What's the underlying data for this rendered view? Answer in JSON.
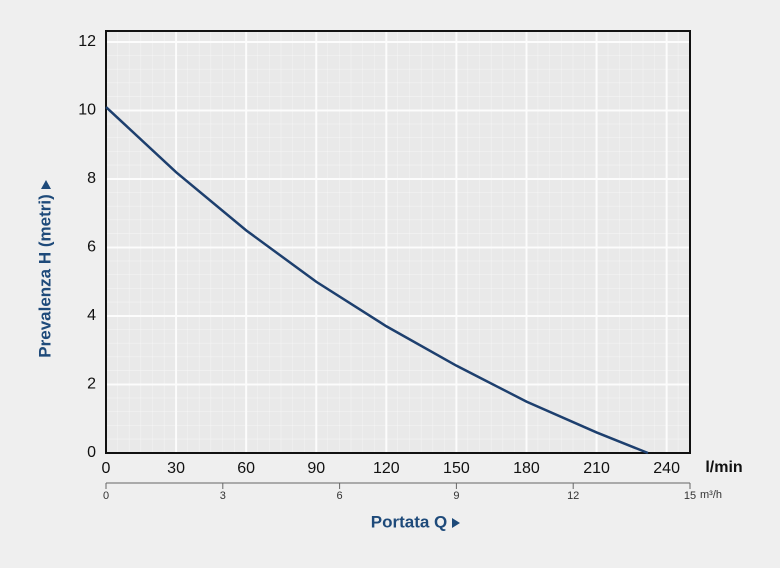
{
  "chart_data": {
    "type": "line",
    "x_label": "Portata Q",
    "y_label": "Prevalenza H (metri)",
    "x_unit": "l/min",
    "x2_unit": "m³/h",
    "x": [
      0,
      30,
      60,
      90,
      120,
      150,
      180,
      210,
      232
    ],
    "series": [
      {
        "name": "H",
        "color": "#1d3f6e",
        "values": [
          10.1,
          8.2,
          6.5,
          5.0,
          3.7,
          2.55,
          1.5,
          0.6,
          0
        ]
      }
    ],
    "xlim": [
      0,
      250
    ],
    "xticks": [
      0,
      30,
      60,
      90,
      120,
      150,
      180,
      210,
      240
    ],
    "ylim": [
      0,
      12
    ],
    "yticks": [
      0,
      2,
      4,
      6,
      8,
      10,
      12
    ],
    "x2lim": [
      0,
      15
    ],
    "x2ticks": [
      0,
      3,
      6,
      9,
      12,
      15
    ],
    "grid": true
  }
}
